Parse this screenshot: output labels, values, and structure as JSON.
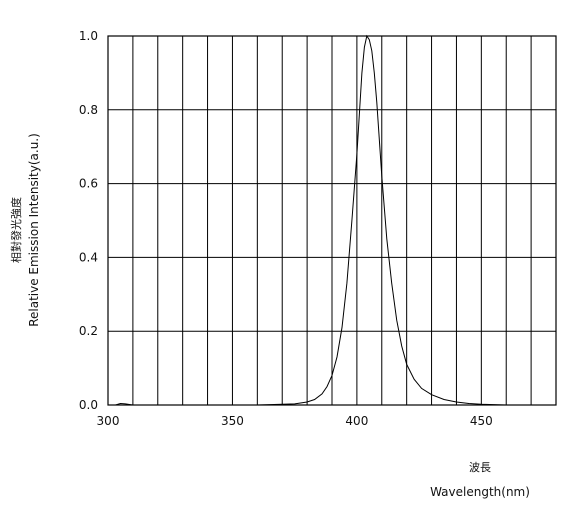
{
  "chart_data": {
    "type": "line",
    "title": "",
    "xlabel_cjk": "波長",
    "xlabel": "Wavelength(nm)",
    "ylabel_cjk": "相對發光強度",
    "ylabel": "Relative Emission Intensity(a.u.)",
    "xlim": [
      300,
      480
    ],
    "ylim": [
      0.0,
      1.0
    ],
    "grid": true,
    "x_ticks": [
      300,
      350,
      400,
      450
    ],
    "y_ticks": [
      "0.0",
      "0.2",
      "0.4",
      "0.6",
      "0.8",
      "1.0"
    ],
    "line_color": "#000000",
    "series": [
      {
        "x": [
          300,
          303,
          305,
          307,
          310,
          320,
          340,
          360,
          370,
          375,
          380,
          383,
          386,
          388,
          390,
          392,
          394,
          396,
          398,
          400,
          401,
          402,
          403,
          404,
          405,
          406,
          407,
          408,
          409,
          410,
          412,
          414,
          416,
          418,
          420,
          423,
          426,
          430,
          435,
          440,
          445,
          450,
          455,
          460
        ],
        "y": [
          0.0,
          0.0,
          0.004,
          0.003,
          0.0,
          0.0,
          0.0,
          0.0,
          0.002,
          0.003,
          0.008,
          0.015,
          0.03,
          0.05,
          0.08,
          0.13,
          0.21,
          0.33,
          0.5,
          0.68,
          0.79,
          0.9,
          0.97,
          1.0,
          0.99,
          0.96,
          0.9,
          0.82,
          0.72,
          0.62,
          0.45,
          0.33,
          0.23,
          0.16,
          0.11,
          0.07,
          0.045,
          0.028,
          0.015,
          0.008,
          0.004,
          0.002,
          0.001,
          0.0
        ]
      }
    ]
  }
}
